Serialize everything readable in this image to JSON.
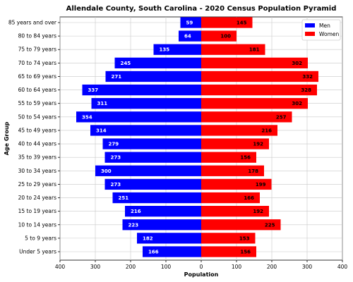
{
  "chart_data": {
    "type": "bar",
    "orientation": "horizontal",
    "layout": "population-pyramid",
    "title": "Allendale County, South Carolina - 2020 Census Population Pyramid",
    "xlabel": "Population",
    "ylabel": "Age Group",
    "xlim": [
      -400,
      400
    ],
    "x_ticks": [
      -400,
      -300,
      -200,
      -100,
      0,
      100,
      200,
      300,
      400
    ],
    "x_tick_labels": [
      "400",
      "300",
      "200",
      "100",
      "0",
      "100",
      "200",
      "300",
      "400"
    ],
    "grid": true,
    "legend_position": "top-right",
    "categories": [
      "Under 5 years",
      "5 to 9 years",
      "10 to 14 years",
      "15 to 19 years",
      "20 to 24 years",
      "25 to 29 years",
      "30 to 34 years",
      "35 to 39 years",
      "40 to 44 years",
      "45 to 49 years",
      "50 to 54 years",
      "55 to 59 years",
      "60 to 64 years",
      "65 to 69 years",
      "70 to 74 years",
      "75 to 79 years",
      "80 to 84 years",
      "85 years and over"
    ],
    "series": [
      {
        "name": "Men",
        "color": "#0000ff",
        "label_color": "#ffffff",
        "side": "left",
        "values": [
          166,
          182,
          223,
          216,
          251,
          273,
          300,
          273,
          279,
          314,
          354,
          311,
          337,
          271,
          245,
          135,
          64,
          59
        ]
      },
      {
        "name": "Women",
        "color": "#ff0000",
        "label_color": "#000000",
        "side": "right",
        "values": [
          156,
          153,
          225,
          192,
          166,
          199,
          178,
          156,
          192,
          216,
          257,
          302,
          328,
          332,
          302,
          181,
          100,
          145
        ]
      }
    ]
  }
}
